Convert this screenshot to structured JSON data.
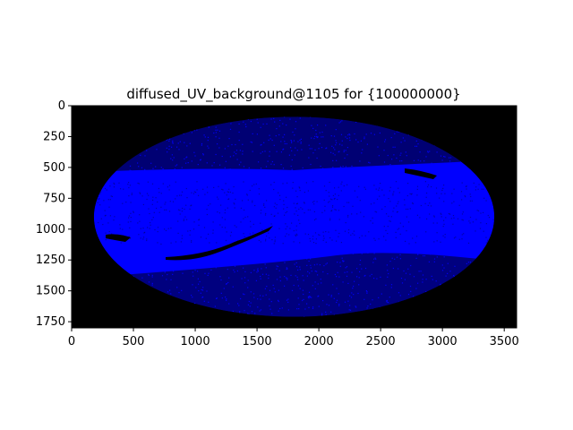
{
  "chart_data": {
    "type": "heatmap",
    "title": "diffused_UV_background@1105 for {100000000}",
    "xlabel": "",
    "ylabel": "",
    "xlim": [
      0,
      3600
    ],
    "ylim": [
      1800,
      0
    ],
    "x_ticks": [
      "0",
      "500",
      "1000",
      "1500",
      "2000",
      "2500",
      "3000",
      "3500"
    ],
    "y_ticks": [
      "0",
      "250",
      "500",
      "750",
      "1000",
      "1250",
      "1500",
      "1750"
    ],
    "grid": false,
    "background_color": "#000000",
    "point_color": "#0000ff",
    "projection": "mollweide-ellipse",
    "ellipse": {
      "center_x": 1800,
      "center_y": 900,
      "radius_x": 1620,
      "radius_y": 810
    }
  }
}
